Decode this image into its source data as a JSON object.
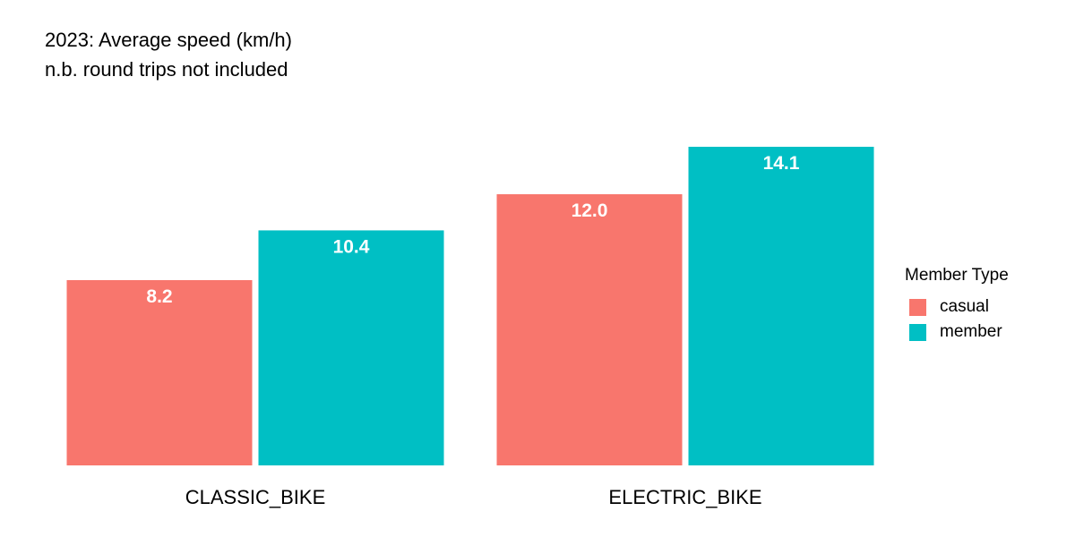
{
  "chart_data": {
    "type": "bar",
    "title": "2023: Average speed (km/h)",
    "subtitle": "n.b. round trips not included",
    "xlabel": "",
    "ylabel": "",
    "categories": [
      "CLASSIC_BIKE",
      "ELECTRIC_BIKE"
    ],
    "series": [
      {
        "name": "casual",
        "color": "#F8766D",
        "values": [
          8.2,
          12.0
        ],
        "labels": [
          "8.2",
          "12.0"
        ]
      },
      {
        "name": "member",
        "color": "#00BFC4",
        "values": [
          10.4,
          14.1
        ],
        "labels": [
          "10.4",
          "14.1"
        ]
      }
    ],
    "ylim": [
      0,
      14.1
    ],
    "grid": false,
    "legend": {
      "title": "Member Type",
      "position": "right"
    }
  }
}
